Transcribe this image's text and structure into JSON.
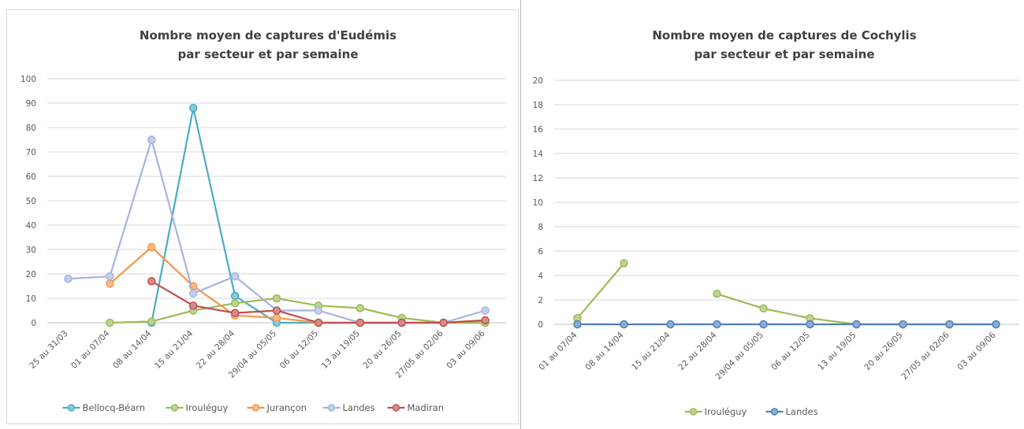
{
  "chart_data": [
    {
      "type": "line",
      "title": "Nombre moyen de captures d'Eudémis",
      "subtitle": "par secteur et par semaine",
      "ylim": [
        0,
        100
      ],
      "yticks": [
        "0",
        "10",
        "20",
        "30",
        "40",
        "50",
        "60",
        "70",
        "80",
        "90",
        "100"
      ],
      "grid": true,
      "legend_position": "bottom",
      "categories": [
        "25 au 31/03",
        "01 au 07/04",
        "08 au 14/04",
        "15 au 21/04",
        "22 au 28/04",
        "29/04 au 05/05",
        "06 au 12/05",
        "13 au 19/05",
        "20 au 26/05",
        "27/05 au 02/06",
        "03 au 09/06"
      ],
      "series": [
        {
          "name": "Bellocq-Béarn",
          "color": "#4bacc6",
          "values": [
            null,
            null,
            0,
            88,
            11,
            0,
            0,
            0,
            0,
            0,
            0
          ]
        },
        {
          "name": "Irouléguy",
          "color": "#9bbb59",
          "values": [
            null,
            0,
            0.5,
            5,
            8,
            10,
            7,
            6,
            2,
            0,
            0
          ]
        },
        {
          "name": "Jurançon",
          "color": "#f79646",
          "values": [
            null,
            16,
            31,
            15,
            3,
            2,
            0,
            0,
            0,
            0,
            1
          ]
        },
        {
          "name": "Landes",
          "color": "#a5b4e0",
          "values": [
            18,
            19,
            75,
            12,
            19,
            5,
            5,
            0,
            0,
            0,
            5
          ]
        },
        {
          "name": "Madiran",
          "color": "#c0504d",
          "values": [
            null,
            null,
            17,
            7,
            4,
            5,
            0,
            0,
            0,
            0,
            1
          ]
        }
      ]
    },
    {
      "type": "line",
      "title": "Nombre moyen de captures de Cochylis",
      "subtitle": "par secteur et par semaine",
      "ylim": [
        0,
        20
      ],
      "yticks": [
        "0",
        "2",
        "4",
        "6",
        "8",
        "10",
        "12",
        "14",
        "16",
        "18",
        "20"
      ],
      "grid": true,
      "legend_position": "bottom",
      "categories": [
        "01 au 07/04",
        "08 au 14/04",
        "15 au 21/04",
        "22 au 28/04",
        "29/04 au 05/05",
        "06 au 12/05",
        "13 au 19/05",
        "20 au 26/05",
        "27/05 au 02/06",
        "03 au 09/06"
      ],
      "series": [
        {
          "name": "Irouléguy",
          "color": "#9bbb59",
          "values": [
            0.5,
            5,
            null,
            2.5,
            1.3,
            0.5,
            0,
            0,
            0,
            0
          ]
        },
        {
          "name": "Landes",
          "color": "#4f81bd",
          "values": [
            0,
            0,
            0,
            0,
            0,
            0,
            0,
            0,
            0,
            0
          ]
        }
      ]
    }
  ]
}
